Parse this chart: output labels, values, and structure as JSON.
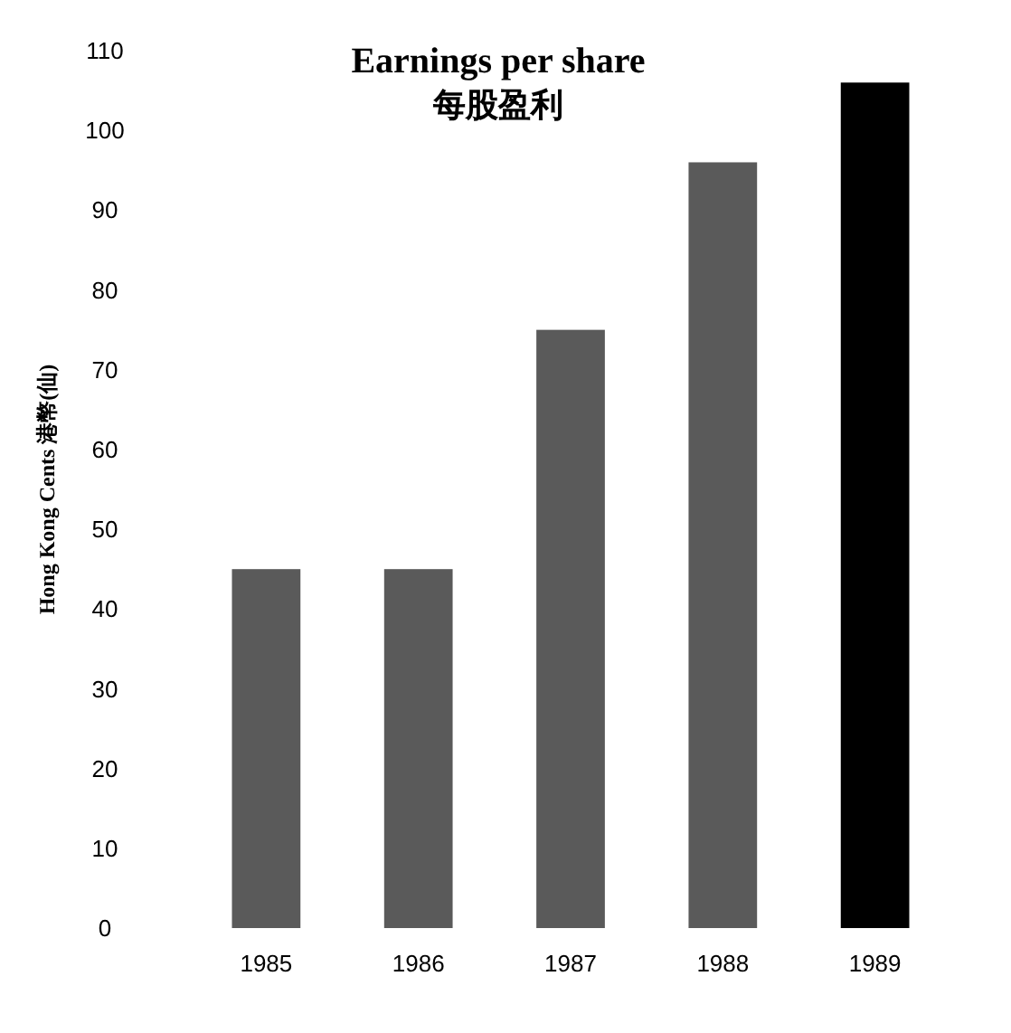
{
  "chart_data": {
    "type": "bar",
    "title": "Earnings per share",
    "subtitle": "每股盈利",
    "ylabel": "Hong Kong Cents 港幣(仙)",
    "categories": [
      "1985",
      "1986",
      "1987",
      "1988",
      "1989"
    ],
    "values": [
      45,
      45,
      75,
      96,
      106
    ],
    "colors": [
      "#5a5a5a",
      "#5a5a5a",
      "#5a5a5a",
      "#5a5a5a",
      "#000000"
    ],
    "ylim": [
      0,
      110
    ],
    "yticks": [
      0,
      10,
      20,
      30,
      40,
      50,
      60,
      70,
      80,
      90,
      100,
      110
    ],
    "grid": false
  }
}
